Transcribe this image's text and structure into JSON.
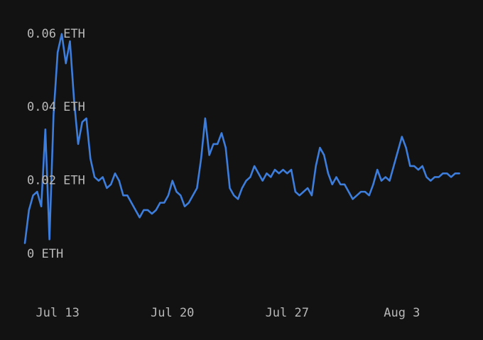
{
  "chart_data": {
    "type": "line",
    "categories": [
      null,
      null,
      null,
      null,
      null,
      null,
      null,
      null,
      "Jul 13",
      null,
      null,
      null,
      null,
      null,
      null,
      null,
      null,
      null,
      null,
      null,
      null,
      null,
      null,
      null,
      null,
      null,
      null,
      null,
      null,
      null,
      null,
      null,
      null,
      null,
      null,
      null,
      "Jul 20",
      null,
      null,
      null,
      null,
      null,
      null,
      null,
      null,
      null,
      null,
      null,
      null,
      null,
      null,
      null,
      null,
      null,
      null,
      null,
      null,
      null,
      null,
      null,
      null,
      null,
      null,
      null,
      "Jul 27",
      null,
      null,
      null,
      null,
      null,
      null,
      null,
      null,
      null,
      null,
      null,
      null,
      null,
      null,
      null,
      null,
      null,
      null,
      null,
      null,
      null,
      null,
      null,
      null,
      null,
      null,
      null,
      "Aug 3",
      null,
      null,
      null,
      null,
      null,
      null,
      null,
      null,
      null,
      null,
      null,
      null,
      null,
      null
    ],
    "values": [
      0.003,
      0.012,
      0.016,
      0.017,
      0.013,
      0.034,
      0.004,
      0.038,
      0.055,
      0.06,
      0.052,
      0.058,
      0.042,
      0.03,
      0.036,
      0.037,
      0.026,
      0.021,
      0.02,
      0.021,
      0.018,
      0.019,
      0.022,
      0.02,
      0.016,
      0.016,
      0.014,
      0.012,
      0.01,
      0.012,
      0.012,
      0.011,
      0.012,
      0.014,
      0.014,
      0.016,
      0.02,
      0.017,
      0.016,
      0.013,
      0.014,
      0.016,
      0.018,
      0.026,
      0.037,
      0.027,
      0.03,
      0.03,
      0.033,
      0.029,
      0.018,
      0.016,
      0.015,
      0.018,
      0.02,
      0.021,
      0.024,
      0.022,
      0.02,
      0.022,
      0.021,
      0.023,
      0.022,
      0.023,
      0.022,
      0.023,
      0.017,
      0.016,
      0.017,
      0.018,
      0.016,
      0.024,
      0.029,
      0.027,
      0.022,
      0.019,
      0.021,
      0.019,
      0.019,
      0.017,
      0.015,
      0.016,
      0.017,
      0.017,
      0.016,
      0.019,
      0.023,
      0.02,
      0.021,
      0.02,
      0.024,
      0.028,
      0.032,
      0.029,
      0.024,
      0.024,
      0.023,
      0.024,
      0.021,
      0.02,
      0.021,
      0.021,
      0.022,
      0.022,
      0.021,
      0.022,
      0.022
    ],
    "color": "#3d7ddb",
    "ylim": [
      0,
      0.065
    ],
    "yticks": [
      {
        "value": 0,
        "label": "0 ETH"
      },
      {
        "value": 0.02,
        "label": "0.02 ETH"
      },
      {
        "value": 0.04,
        "label": "0.04 ETH"
      },
      {
        "value": 0.06,
        "label": "0.06 ETH"
      }
    ],
    "grid": false
  }
}
